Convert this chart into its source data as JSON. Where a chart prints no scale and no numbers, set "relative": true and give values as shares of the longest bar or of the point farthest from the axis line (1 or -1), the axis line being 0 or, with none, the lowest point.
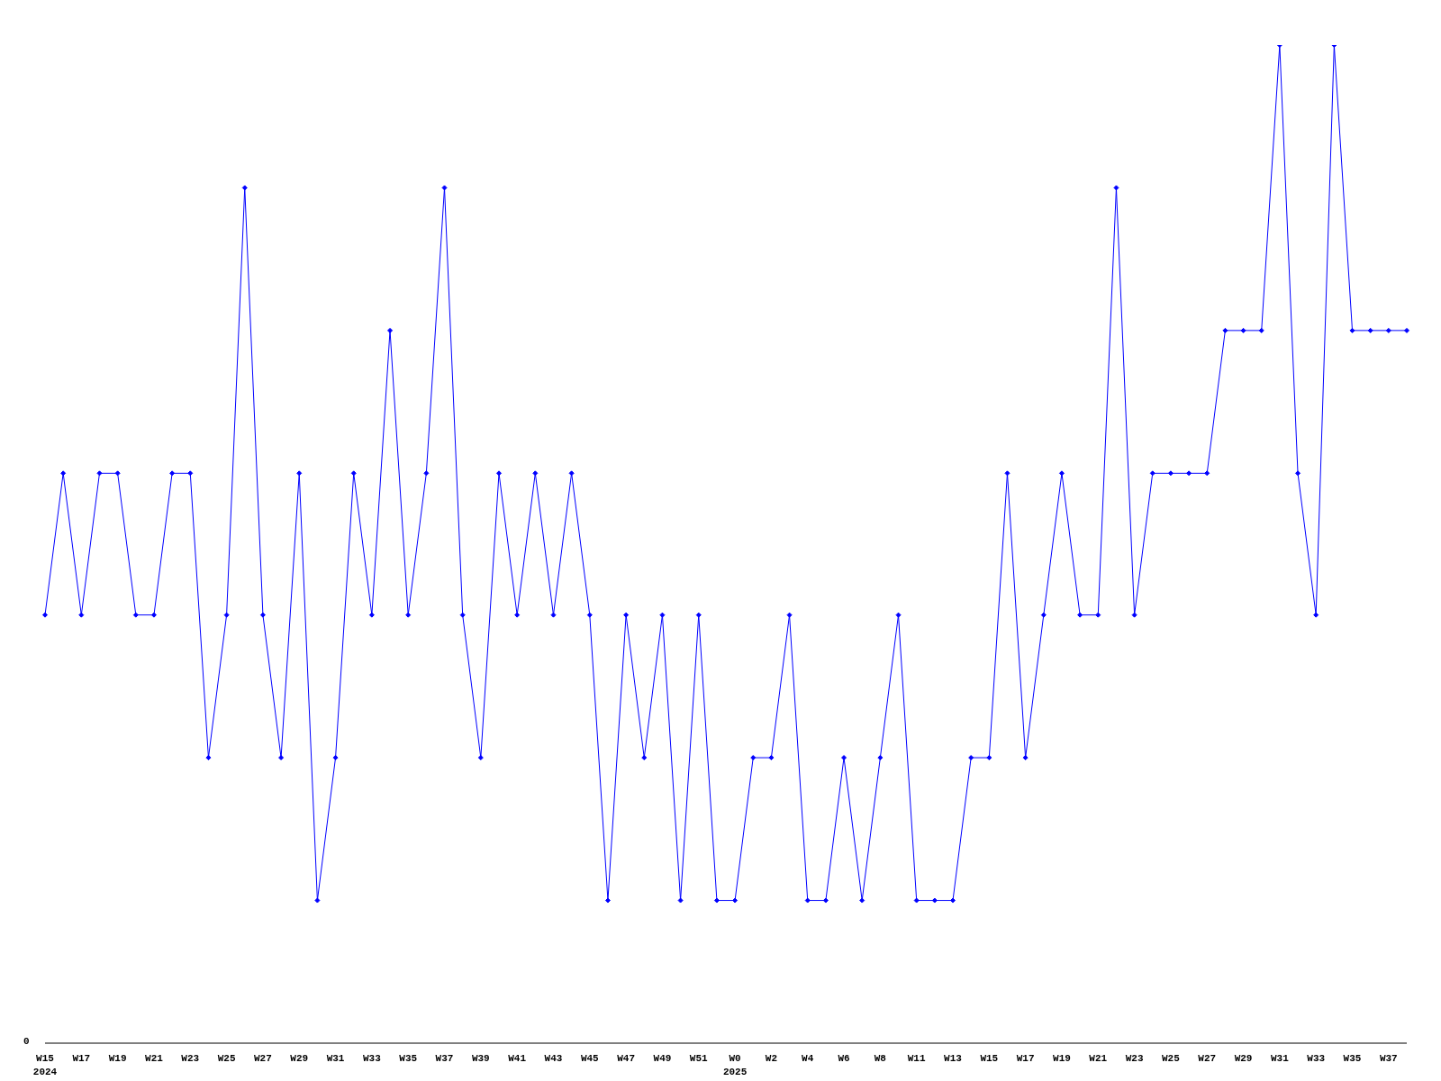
{
  "chart_data": {
    "type": "line",
    "relative": true,
    "marker": "diamond",
    "color": "#0000ff",
    "categories": [
      "W15\n2024",
      null,
      "W17",
      null,
      "W19",
      null,
      "W21",
      null,
      "W23",
      null,
      "W25",
      null,
      "W27",
      null,
      "W29",
      null,
      "W31",
      null,
      "W33",
      null,
      "W35",
      null,
      "W37",
      null,
      "W39",
      null,
      "W41",
      null,
      "W43",
      null,
      "W45",
      null,
      "W47",
      null,
      "W49",
      null,
      "W51",
      null,
      "W0\n2025",
      null,
      "W2",
      null,
      "W4",
      null,
      "W6",
      null,
      "W8",
      null,
      "W11",
      null,
      "W13",
      null,
      "W15",
      null,
      "W17",
      null,
      "W19",
      null,
      "W21",
      null,
      "W23",
      null,
      "W25",
      null,
      "W27",
      null,
      "W29",
      null,
      "W31",
      null,
      "W33",
      null,
      "W35",
      null,
      "W37",
      null
    ],
    "values": [
      0.429,
      0.571,
      0.429,
      0.571,
      0.571,
      0.429,
      0.429,
      0.571,
      0.571,
      0.286,
      0.429,
      0.857,
      0.429,
      0.286,
      0.571,
      0.143,
      0.286,
      0.571,
      0.429,
      0.714,
      0.429,
      0.571,
      0.857,
      0.429,
      0.286,
      0.571,
      0.429,
      0.571,
      0.429,
      0.571,
      0.429,
      0.143,
      0.429,
      0.286,
      0.429,
      0.143,
      0.429,
      0.143,
      0.143,
      0.286,
      0.286,
      0.429,
      0.143,
      0.143,
      0.286,
      0.143,
      0.286,
      0.429,
      0.143,
      0.143,
      0.143,
      0.286,
      0.286,
      0.571,
      0.286,
      0.429,
      0.571,
      0.429,
      0.429,
      0.857,
      0.429,
      0.571,
      0.571,
      0.571,
      0.571,
      0.714,
      0.714,
      0.714,
      1,
      0.571,
      0.429,
      1,
      0.714,
      0.714,
      0.714,
      0.714
    ],
    "annotations": [
      "0"
    ]
  }
}
